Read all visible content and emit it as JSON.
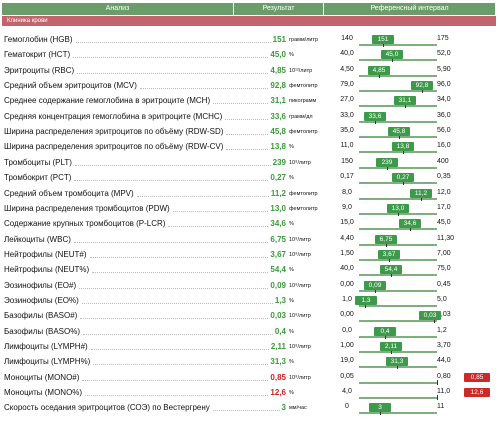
{
  "header": {
    "analysis": "Анализ",
    "result": "Результат",
    "reference": "Референсный интервал"
  },
  "section": {
    "title": "Клиника крови"
  },
  "rows": [
    {
      "name": "Гемоглобин (HGB)",
      "value": "151",
      "unit": "грамм/литр",
      "low": "140",
      "high": "175",
      "marker": "151",
      "pos": 0.31,
      "out": false
    },
    {
      "name": "Гематокрит (HCT)",
      "value": "45,0",
      "unit": "%",
      "low": "40,0",
      "high": "52,0",
      "marker": "45,0",
      "pos": 0.42,
      "out": false
    },
    {
      "name": "Эритроциты (RBC)",
      "value": "4,85",
      "unit": "10¹²/литр",
      "low": "4,50",
      "high": "5,90",
      "marker": "4,85",
      "pos": 0.25,
      "out": false
    },
    {
      "name": "Средний объем эритроцитов (MCV)",
      "value": "92,8",
      "unit": "фемтолитр",
      "low": "79,0",
      "high": "96,0",
      "marker": "92,8",
      "pos": 0.81,
      "out": false
    },
    {
      "name": "Среднее содержание гемоглобина в эритроците (MCH)",
      "value": "31,1",
      "unit": "пикограмм",
      "low": "27,0",
      "high": "34,0",
      "marker": "31,1",
      "pos": 0.59,
      "out": false
    },
    {
      "name": "Средняя концентрация гемоглобина в эритроците (MCHC)",
      "value": "33,6",
      "unit": "грамм/дл",
      "low": "33,0",
      "high": "36,0",
      "marker": "33,6",
      "pos": 0.2,
      "out": false
    },
    {
      "name": "Ширина распределения эритроцитов по объёму (RDW-SD)",
      "value": "45,8",
      "unit": "фемтолитр",
      "low": "35,0",
      "high": "56,0",
      "marker": "45,8",
      "pos": 0.51,
      "out": false
    },
    {
      "name": "Ширина распределения эритроцитов по объёму (RDW-CV)",
      "value": "13,8",
      "unit": "%",
      "low": "11,0",
      "high": "16,0",
      "marker": "13,8",
      "pos": 0.56,
      "out": false
    },
    {
      "name": "Тромбоциты (PLT)",
      "value": "239",
      "unit": "10⁹/литр",
      "low": "150",
      "high": "400",
      "marker": "239",
      "pos": 0.36,
      "out": false
    },
    {
      "name": "Тромбокрит (PCT)",
      "value": "0,27",
      "unit": "%",
      "low": "0,17",
      "high": "0,35",
      "marker": "0,27",
      "pos": 0.56,
      "out": false
    },
    {
      "name": "Средний объем тромбоцита (MPV)",
      "value": "11,2",
      "unit": "фемтолитр",
      "low": "8,0",
      "high": "12,0",
      "marker": "11,2",
      "pos": 0.8,
      "out": false
    },
    {
      "name": "Ширина распределения тромбоцитов (PDW)",
      "value": "13,0",
      "unit": "фемтолитр",
      "low": "9,0",
      "high": "17,0",
      "marker": "13,0",
      "pos": 0.5,
      "out": false
    },
    {
      "name": "Содержание крупных тромбоцитов (P-LCR)",
      "value": "34,6",
      "unit": "%",
      "low": "15,0",
      "high": "45,0",
      "marker": "34,6",
      "pos": 0.65,
      "out": false
    },
    {
      "name": "Лейкоциты (WBC)",
      "value": "6,75",
      "unit": "10⁹/литр",
      "low": "4,40",
      "high": "11,30",
      "marker": "6,75",
      "pos": 0.34,
      "out": false
    },
    {
      "name": "Нейтрофилы (NEUT#)",
      "value": "3,67",
      "unit": "10⁹/литр",
      "low": "1,50",
      "high": "7,00",
      "marker": "3,67",
      "pos": 0.39,
      "out": false
    },
    {
      "name": "Нейтрофилы (NEUT%)",
      "value": "54,4",
      "unit": "%",
      "low": "40,0",
      "high": "75,0",
      "marker": "54,4",
      "pos": 0.41,
      "out": false
    },
    {
      "name": "Эозинофилы (EO#)",
      "value": "0,09",
      "unit": "10⁹/литр",
      "low": "0,00",
      "high": "0,45",
      "marker": "0,09",
      "pos": 0.2,
      "out": false
    },
    {
      "name": "Эозинофилы (EO%)",
      "value": "1,3",
      "unit": "%",
      "low": "1,0",
      "high": "5,0",
      "marker": "1,3",
      "pos": 0.08,
      "out": false
    },
    {
      "name": "Базофилы (BASO#)",
      "value": "0,03",
      "unit": "10⁹/литр",
      "low": "0,00",
      "high": "0,03",
      "marker": "0,03",
      "pos": 0.96,
      "out": false
    },
    {
      "name": "Базофилы (BASO%)",
      "value": "0,4",
      "unit": "%",
      "low": "0,0",
      "high": "1,2",
      "marker": "0,4",
      "pos": 0.33,
      "out": false
    },
    {
      "name": "Лимфоциты (LYMPH#)",
      "value": "2,11",
      "unit": "10⁹/литр",
      "low": "1,00",
      "high": "3,70",
      "marker": "2,11",
      "pos": 0.41,
      "out": false
    },
    {
      "name": "Лимфоциты (LYMPH%)",
      "value": "31,3",
      "unit": "%",
      "low": "19,0",
      "high": "44,0",
      "marker": "31,3",
      "pos": 0.49,
      "out": false
    },
    {
      "name": "Моноциты (MONO#)",
      "value": "0,85",
      "unit": "10⁹/литр",
      "low": "0,05",
      "high": "0,80",
      "marker": "0,85",
      "pos": 1.0,
      "out": true
    },
    {
      "name": "Моноциты (MONO%)",
      "value": "12,6",
      "unit": "%",
      "low": "4,0",
      "high": "11,0",
      "marker": "12,6",
      "pos": 1.0,
      "out": true
    },
    {
      "name": "Скорость оседания эритроцитов (СОЭ) по Вестергрену",
      "value": "3",
      "unit": "мм/час",
      "low": "0",
      "high": "11",
      "marker": "3",
      "pos": 0.27,
      "out": false
    }
  ]
}
